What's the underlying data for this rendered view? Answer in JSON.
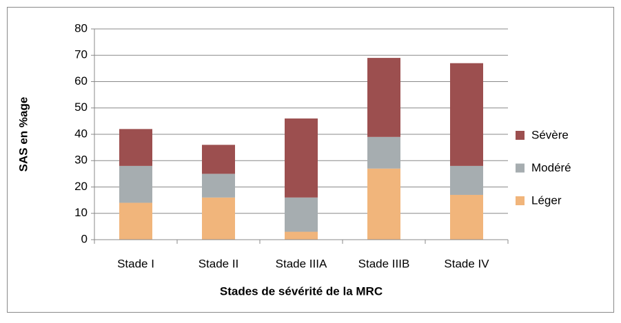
{
  "chart_data": {
    "type": "stacked_bar",
    "xlabel": "Stades de sévérité de la MRC",
    "ylabel": "SAS en %age",
    "categories": [
      "Stade I",
      "Stade II",
      "Stade IIIA",
      "Stade IIIB",
      "Stade IV"
    ],
    "series": [
      {
        "name": "Léger",
        "color": "#f1b57b",
        "values": [
          14,
          16,
          3,
          27,
          17
        ]
      },
      {
        "name": "Modéré",
        "color": "#a6adb0",
        "values": [
          14,
          9,
          13,
          12,
          11
        ]
      },
      {
        "name": "Sévère",
        "color": "#9c4f4f",
        "values": [
          14,
          11,
          30,
          30,
          39
        ]
      }
    ],
    "ylim": [
      0,
      80
    ],
    "yticks": [
      0,
      10,
      20,
      30,
      40,
      50,
      60,
      70,
      80
    ],
    "grid": true,
    "legend": "right"
  }
}
